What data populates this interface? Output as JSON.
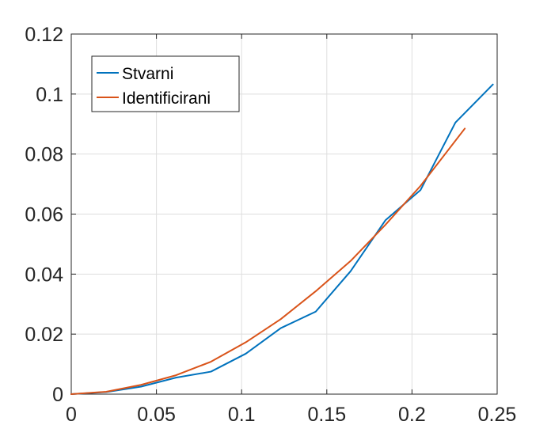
{
  "chart_data": {
    "type": "line",
    "title": "",
    "xlabel": "",
    "ylabel": "",
    "xlim": [
      0,
      0.25
    ],
    "ylim": [
      0,
      0.12
    ],
    "x_ticks": [
      0,
      0.05,
      0.1,
      0.15,
      0.2,
      0.25
    ],
    "x_tick_labels": [
      "0",
      "0.05",
      "0.1",
      "0.15",
      "0.2",
      "0.25"
    ],
    "y_ticks": [
      0,
      0.02,
      0.04,
      0.06,
      0.08,
      0.1,
      0.12
    ],
    "y_tick_labels": [
      "0",
      "0.02",
      "0.04",
      "0.06",
      "0.08",
      "0.1",
      "0.12"
    ],
    "grid": true,
    "legend_position": "top-left",
    "series": [
      {
        "name": "Stvarni",
        "color": "#0072BD",
        "x": [
          0,
          0.0205,
          0.041,
          0.0615,
          0.082,
          0.1025,
          0.123,
          0.1435,
          0.164,
          0.1845,
          0.205,
          0.2255,
          0.2475
        ],
        "y": [
          0,
          0.0007,
          0.0025,
          0.0055,
          0.0075,
          0.0135,
          0.022,
          0.0275,
          0.041,
          0.058,
          0.068,
          0.0905,
          0.1032
        ]
      },
      {
        "name": "Identificirani",
        "color": "#D95319",
        "x": [
          0,
          0.0205,
          0.041,
          0.0615,
          0.082,
          0.1025,
          0.123,
          0.1435,
          0.164,
          0.1845,
          0.205,
          0.231
        ],
        "y": [
          0,
          0.0008,
          0.0031,
          0.0063,
          0.0108,
          0.0173,
          0.025,
          0.0343,
          0.0444,
          0.0565,
          0.0694,
          0.0885
        ]
      }
    ]
  }
}
